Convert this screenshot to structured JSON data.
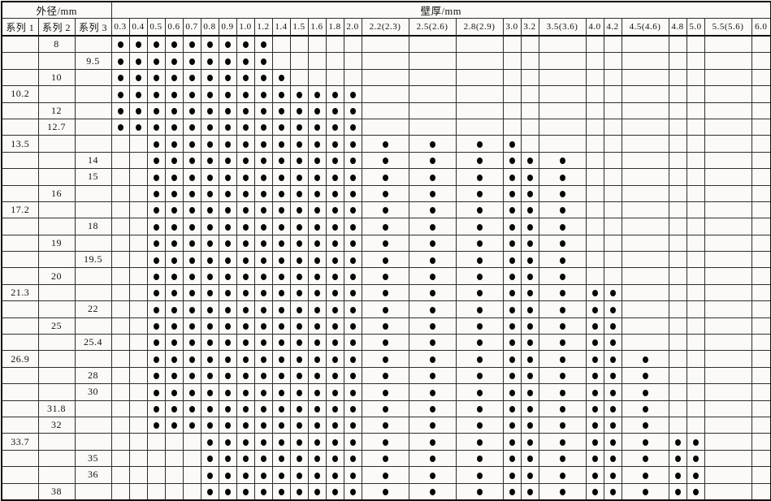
{
  "table": {
    "header": {
      "outer_diameter_label": "外径/mm",
      "wall_thickness_label": "壁厚/mm",
      "series_labels": [
        "系列 1",
        "系列 2",
        "系列 3"
      ],
      "thickness_columns": [
        "0.3",
        "0.4",
        "0.5",
        "0.6",
        "0.7",
        "0.8",
        "0.9",
        "1.0",
        "1.2",
        "1.4",
        "1.5",
        "1.6",
        "1.8",
        "2.0",
        "2.2(2.3)",
        "2.5(2.6)",
        "2.8(2.9)",
        "3.0",
        "3.2",
        "3.5(3.6)",
        "4.0",
        "4.2",
        "4.5(4.6)",
        "4.8",
        "5.0",
        "5.5(5.6)",
        "6.0"
      ]
    },
    "dot_symbol": "●",
    "rows": [
      {
        "series1": "",
        "series2": "8",
        "series3": "",
        "dots_from": "0.3",
        "dots_to": "1.2"
      },
      {
        "series1": "",
        "series2": "",
        "series3": "9.5",
        "dots_from": "0.3",
        "dots_to": "1.2"
      },
      {
        "series1": "",
        "series2": "10",
        "series3": "",
        "dots_from": "0.3",
        "dots_to": "1.4"
      },
      {
        "series1": "10.2",
        "series2": "",
        "series3": "",
        "dots_from": "0.3",
        "dots_to": "2.0"
      },
      {
        "series1": "",
        "series2": "12",
        "series3": "",
        "dots_from": "0.3",
        "dots_to": "2.0"
      },
      {
        "series1": "",
        "series2": "12.7",
        "series3": "",
        "dots_from": "0.3",
        "dots_to": "2.0"
      },
      {
        "series1": "13.5",
        "series2": "",
        "series3": "",
        "dots_from": "0.5",
        "dots_to": "3.0"
      },
      {
        "series1": "",
        "series2": "",
        "series3": "14",
        "dots_from": "0.5",
        "dots_to": "3.5(3.6)"
      },
      {
        "series1": "",
        "series2": "",
        "series3": "15",
        "dots_from": "0.5",
        "dots_to": "3.5(3.6)"
      },
      {
        "series1": "",
        "series2": "16",
        "series3": "",
        "dots_from": "0.5",
        "dots_to": "3.5(3.6)"
      },
      {
        "series1": "17.2",
        "series2": "",
        "series3": "",
        "dots_from": "0.5",
        "dots_to": "3.5(3.6)"
      },
      {
        "series1": "",
        "series2": "",
        "series3": "18",
        "dots_from": "0.5",
        "dots_to": "3.5(3.6)"
      },
      {
        "series1": "",
        "series2": "19",
        "series3": "",
        "dots_from": "0.5",
        "dots_to": "3.5(3.6)"
      },
      {
        "series1": "",
        "series2": "",
        "series3": "19.5",
        "dots_from": "0.5",
        "dots_to": "3.5(3.6)"
      },
      {
        "series1": "",
        "series2": "20",
        "series3": "",
        "dots_from": "0.5",
        "dots_to": "3.5(3.6)"
      },
      {
        "series1": "21.3",
        "series2": "",
        "series3": "",
        "dots_from": "0.5",
        "dots_to": "4.2"
      },
      {
        "series1": "",
        "series2": "",
        "series3": "22",
        "dots_from": "0.5",
        "dots_to": "4.2"
      },
      {
        "series1": "",
        "series2": "25",
        "series3": "",
        "dots_from": "0.5",
        "dots_to": "4.2"
      },
      {
        "series1": "",
        "series2": "",
        "series3": "25.4",
        "dots_from": "0.5",
        "dots_to": "4.2"
      },
      {
        "series1": "26.9",
        "series2": "",
        "series3": "",
        "dots_from": "0.5",
        "dots_to": "4.5(4.6)"
      },
      {
        "series1": "",
        "series2": "",
        "series3": "28",
        "dots_from": "0.5",
        "dots_to": "4.5(4.6)"
      },
      {
        "series1": "",
        "series2": "",
        "series3": "30",
        "dots_from": "0.5",
        "dots_to": "4.5(4.6)"
      },
      {
        "series1": "",
        "series2": "31.8",
        "series3": "",
        "dots_from": "0.5",
        "dots_to": "4.5(4.6)"
      },
      {
        "series1": "",
        "series2": "32",
        "series3": "",
        "dots_from": "0.5",
        "dots_to": "4.5(4.6)"
      },
      {
        "series1": "33.7",
        "series2": "",
        "series3": "",
        "dots_from": "0.8",
        "dots_to": "5.0"
      },
      {
        "series1": "",
        "series2": "",
        "series3": "35",
        "dots_from": "0.8",
        "dots_to": "5.0"
      },
      {
        "series1": "",
        "series2": "",
        "series3": "36",
        "dots_from": "0.8",
        "dots_to": "5.0"
      },
      {
        "series1": "",
        "series2": "38",
        "series3": "",
        "dots_from": "0.8",
        "dots_to": "5.0"
      }
    ]
  }
}
